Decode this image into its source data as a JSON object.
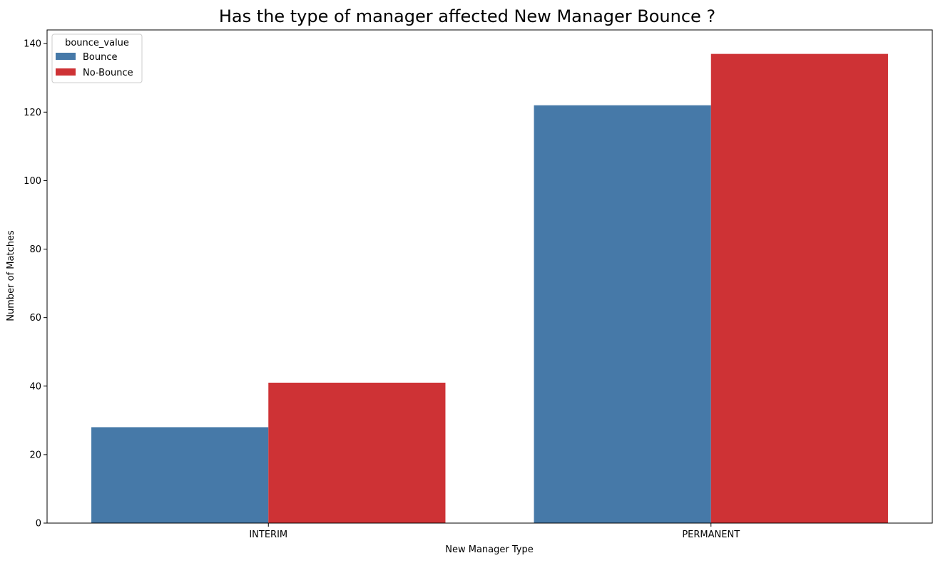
{
  "chart_data": {
    "type": "bar",
    "title": "Has the type of manager affected New Manager Bounce ?",
    "xlabel": "New Manager Type",
    "ylabel": "Number of Matches",
    "categories": [
      "INTERIM",
      "PERMANENT"
    ],
    "series": [
      {
        "name": "Bounce",
        "color": "#4679a8",
        "values": [
          28,
          122
        ]
      },
      {
        "name": "No-Bounce",
        "color": "#ce3235",
        "values": [
          41,
          137
        ]
      }
    ],
    "ylim": [
      0,
      144
    ],
    "yticks": [
      0,
      20,
      40,
      60,
      80,
      100,
      120,
      140
    ],
    "grid": false,
    "legend": {
      "title": "bounce_value",
      "placement": "top-left"
    }
  }
}
